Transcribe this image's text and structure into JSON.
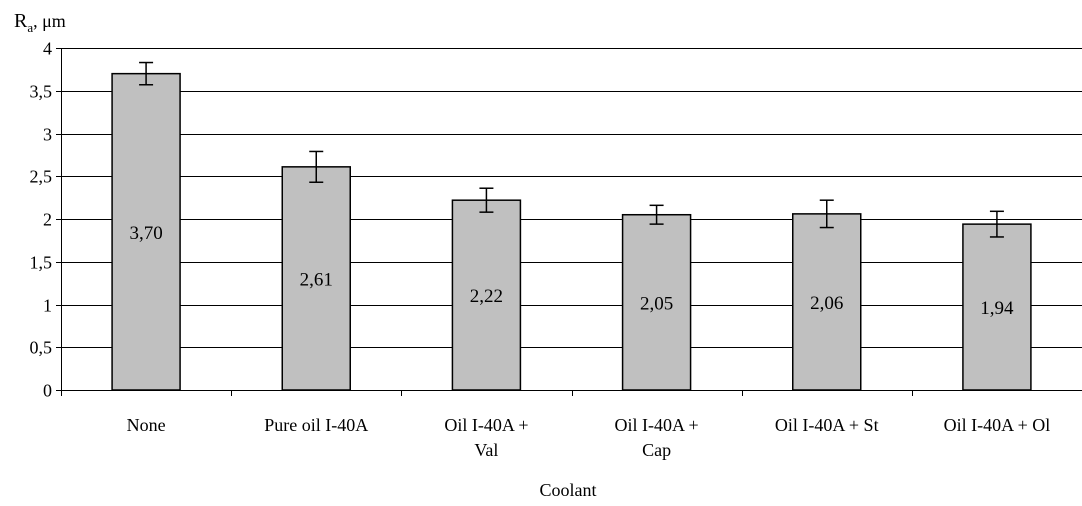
{
  "chart_data": {
    "type": "bar",
    "ylabel_main": "R",
    "ylabel_sub": "a",
    "ylabel_unit": ", μm",
    "xlabel": "Coolant",
    "ylim": [
      0,
      4
    ],
    "yticks": [
      0,
      0.5,
      1,
      1.5,
      2,
      2.5,
      3,
      3.5,
      4
    ],
    "ytick_labels": [
      "0",
      "0,5",
      "1",
      "1,5",
      "2",
      "2,5",
      "3",
      "3,5",
      "4"
    ],
    "grid": true,
    "bar_color": "#C0C0C0",
    "categories": [
      [
        "None"
      ],
      [
        "Pure oil I-40A"
      ],
      [
        "Oil I-40A +",
        "Val"
      ],
      [
        "Oil I-40A +",
        "Cap"
      ],
      [
        "Oil I-40A + St"
      ],
      [
        "Oil I-40A + Ol"
      ]
    ],
    "values": [
      3.7,
      2.61,
      2.22,
      2.05,
      2.06,
      1.94
    ],
    "value_labels": [
      "3,70",
      "2,61",
      "2,22",
      "2,05",
      "2,06",
      "1,94"
    ],
    "error": [
      0.13,
      0.18,
      0.14,
      0.11,
      0.16,
      0.15
    ]
  }
}
